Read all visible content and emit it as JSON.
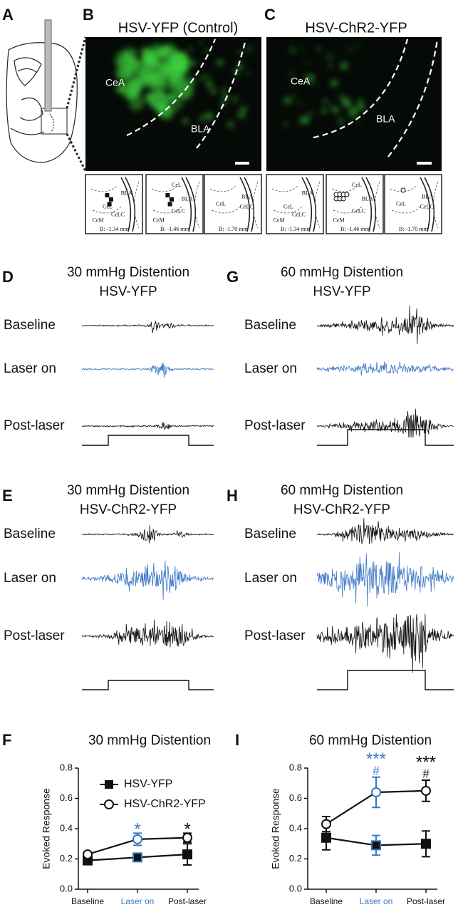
{
  "panel_labels": [
    "A",
    "B",
    "C",
    "D",
    "G",
    "E",
    "H",
    "F",
    "I"
  ],
  "images": [
    {
      "title": "HSV-YFP (Control)",
      "labels": [
        "CeA",
        "BLA"
      ]
    },
    {
      "title": "HSV-ChR2-YFP",
      "labels": [
        "CeA",
        "BLA"
      ]
    }
  ],
  "schematics": [
    {
      "labels": [
        "BLA",
        "CeL",
        "CeLC",
        "CeM",
        "B: -1.34 mm"
      ]
    },
    {
      "labels": [
        "CeL",
        "BLA",
        "CeLC",
        "CeM",
        "B: -1.46 mm"
      ]
    },
    {
      "labels": [
        "CeL",
        "BLA",
        "CeLC",
        "B: -1.70 mm"
      ]
    },
    {
      "labels": [
        "BLA",
        "CeL",
        "CeLC",
        "CeM",
        "B: -1.34 mm"
      ]
    },
    {
      "labels": [
        "CeL",
        "BLA",
        "CeLC",
        "CeM",
        "B: -1.46 mm"
      ]
    },
    {
      "labels": [
        "CeL",
        "BLA",
        "CeLC",
        "B: -1.70 mm"
      ]
    }
  ],
  "recordings": [
    {
      "title": [
        "30 mmHg Distention",
        "HSV-YFP"
      ],
      "rows": [
        "Baseline",
        "Laser on",
        "Post-laser"
      ]
    },
    {
      "title": [
        "60 mmHg Distention",
        "HSV-YFP"
      ],
      "rows": [
        "Baseline",
        "Laser on",
        "Post-laser"
      ]
    },
    {
      "title": [
        "30 mmHg Distention",
        "HSV-ChR2-YFP"
      ],
      "rows": [
        "Baseline",
        "Laser on",
        "Post-laser"
      ]
    },
    {
      "title": [
        "60 mmHg Distention",
        "HSV-ChR2-YFP"
      ],
      "rows": [
        "Baseline",
        "Laser on",
        "Post-laser"
      ]
    }
  ],
  "chart_data": [
    {
      "type": "line",
      "title": "30 mmHg Distention",
      "y_label": "Evoked Response",
      "categories": [
        "Baseline",
        "Laser on",
        "Post-laser"
      ],
      "category_colors": [
        "#111111",
        "#3a78c0",
        "#111111"
      ],
      "series": [
        {
          "name": "HSV-YFP",
          "color": "#111111",
          "marker": "square",
          "values": [
            0.19,
            0.21,
            0.23
          ],
          "errors": [
            0.02,
            0.02,
            0.07
          ]
        },
        {
          "name": "HSV-ChR2-YFP",
          "color": "#111111",
          "marker": "open-circle",
          "values": [
            0.23,
            0.33,
            0.34
          ],
          "errors": [
            0.015,
            0.04,
            0.03
          ]
        }
      ],
      "annotations": [
        null,
        {
          "marks": [
            "*"
          ],
          "color": "#3a78c0"
        },
        {
          "marks": [
            "*"
          ],
          "color": "#111111"
        }
      ],
      "ylim": [
        0,
        0.8
      ],
      "yticks": [
        {
          "value": 0,
          "label": "0.0"
        },
        0.2,
        0.4,
        0.6,
        0.8
      ],
      "grid": false,
      "legend": "upper left"
    },
    {
      "type": "line",
      "title": "60 mmHg Distention",
      "y_label": "Evoked Response",
      "categories": [
        "Baseline",
        "Laser on",
        "Post-laser"
      ],
      "category_colors": [
        "#111111",
        "#3a78c0",
        "#111111"
      ],
      "series": [
        {
          "name": "HSV-YFP",
          "color": "#111111",
          "marker": "square",
          "values": [
            0.34,
            0.29,
            0.3
          ],
          "errors": [
            0.08,
            0.065,
            0.085
          ]
        },
        {
          "name": "HSV-ChR2-YFP",
          "color": "#111111",
          "marker": "open-circle",
          "values": [
            0.43,
            0.64,
            0.65
          ],
          "errors": [
            0.05,
            0.1,
            0.07
          ]
        }
      ],
      "annotations": [
        null,
        {
          "marks": [
            "***",
            "#"
          ],
          "color": "#3a78c0"
        },
        {
          "marks": [
            "***",
            "#"
          ],
          "color": "#111111"
        }
      ],
      "ylim": [
        0,
        0.8
      ],
      "yticks": [
        {
          "value": 0,
          "label": "0.0"
        },
        0.2,
        0.4,
        0.6,
        0.8
      ],
      "grid": false,
      "legend": "none"
    }
  ]
}
